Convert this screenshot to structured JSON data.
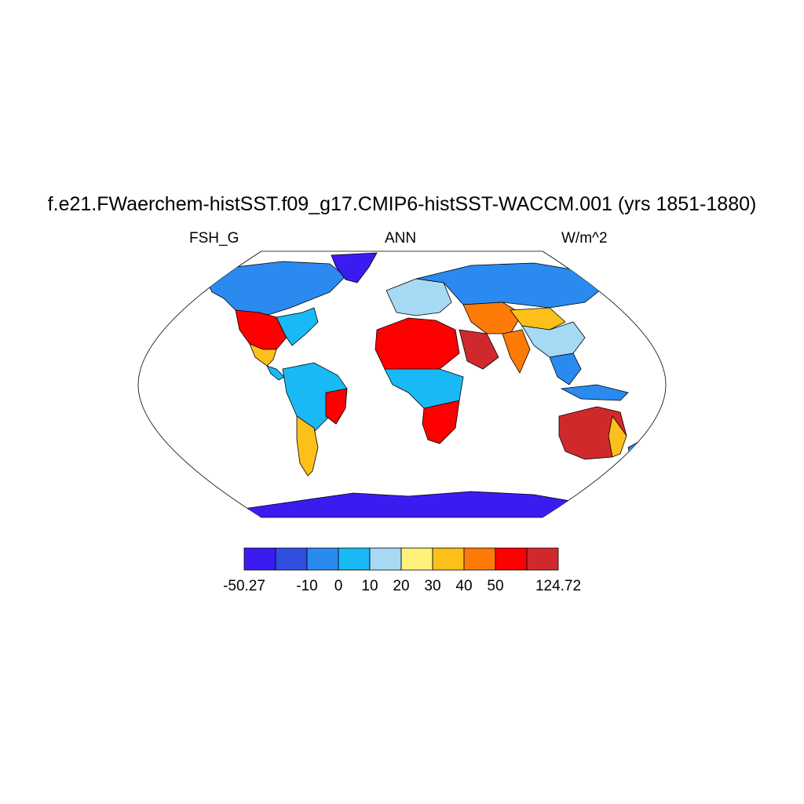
{
  "title": "f.e21.FWaerchem-histSST.f09_g17.CMIP6-histSST-WACCM.001 (yrs 1851-1880)",
  "left_string": "FSH_G",
  "center_string": "ANN",
  "right_string": "W/m^2",
  "map": {
    "projection": "robinson",
    "variable": "FSH_G",
    "season": "ANN",
    "units": "W/m^2",
    "ocean_color": "#ffffff",
    "coastline_color": "#000000",
    "regions": [
      {
        "name": "Greenland",
        "level": 0
      },
      {
        "name": "Antarctica",
        "level": 0
      },
      {
        "name": "Canada and Alaska",
        "level": 2
      },
      {
        "name": "Northern Eurasia",
        "level": 2
      },
      {
        "name": "Eastern United States",
        "level": 3
      },
      {
        "name": "Western United States",
        "level": 8
      },
      {
        "name": "Mexico",
        "level": 6
      },
      {
        "name": "Central America",
        "level": 3
      },
      {
        "name": "Amazon",
        "level": 3
      },
      {
        "name": "Northeast Brazil",
        "level": 8
      },
      {
        "name": "Southern South America",
        "level": 6
      },
      {
        "name": "Sahara",
        "level": 8
      },
      {
        "name": "Arabian Peninsula",
        "level": 9
      },
      {
        "name": "Iran and Central Asia",
        "level": 7
      },
      {
        "name": "Tibetan Plateau",
        "level": 6
      },
      {
        "name": "Tropical Africa",
        "level": 3
      },
      {
        "name": "Southern Africa",
        "level": 8
      },
      {
        "name": "India",
        "level": 7
      },
      {
        "name": "China",
        "level": 4
      },
      {
        "name": "Southeast Asia",
        "level": 2
      },
      {
        "name": "Maritime Continent",
        "level": 2
      },
      {
        "name": "Australia interior",
        "level": 9
      },
      {
        "name": "Eastern Australia",
        "level": 6
      },
      {
        "name": "New Zealand",
        "level": 2
      },
      {
        "name": "Europe",
        "level": 4
      }
    ]
  },
  "colorbar": {
    "colors": [
      "#3b1cf0",
      "#2e4fe0",
      "#2a8af0",
      "#19b9f6",
      "#a6d9f4",
      "#fff27a",
      "#fdbf1a",
      "#fd7a06",
      "#fe0000",
      "#d0292b"
    ],
    "labels": [
      "-50.27",
      "-10",
      "0",
      "10",
      "20",
      "30",
      "40",
      "50",
      "124.72"
    ],
    "min": -50.27,
    "max": 124.72,
    "levels": [
      -10,
      0,
      10,
      20,
      30,
      40,
      50
    ]
  }
}
